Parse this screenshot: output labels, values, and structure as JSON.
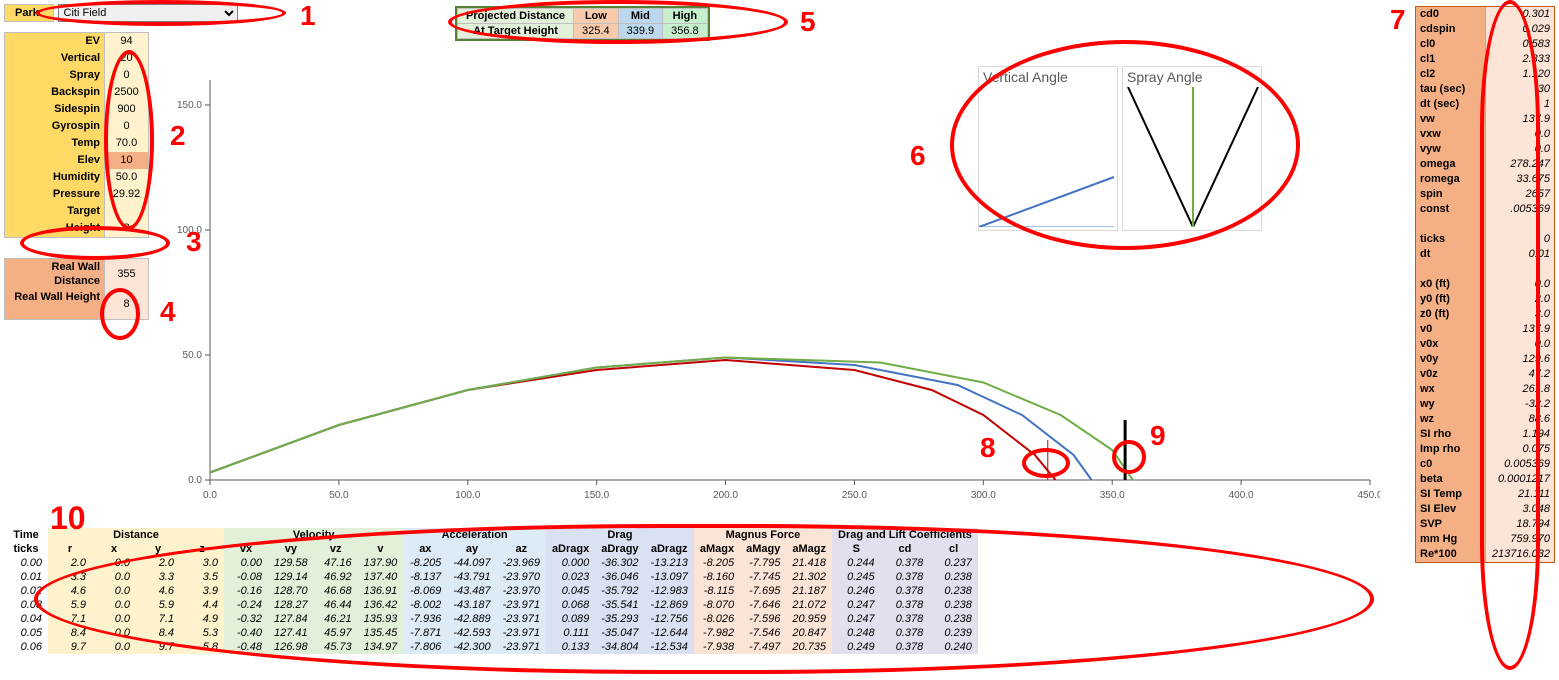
{
  "park": {
    "label": "Park:",
    "selected": "Citi Field"
  },
  "inputs": {
    "rows": [
      {
        "label": "EV",
        "value": "94"
      },
      {
        "label": "Vertical",
        "value": "20"
      },
      {
        "label": "Spray",
        "value": "0"
      },
      {
        "label": "Backspin",
        "value": "2500"
      },
      {
        "label": "Sidespin",
        "value": "900"
      },
      {
        "label": "Gyrospin",
        "value": "0"
      },
      {
        "label": "Temp",
        "value": "70.0"
      },
      {
        "label": "Elev",
        "value": "10",
        "highlight": true
      },
      {
        "label": "Humidity",
        "value": "50.0"
      },
      {
        "label": "Pressure",
        "value": "29.92"
      },
      {
        "label": "Target",
        "value": ""
      },
      {
        "label": "Height",
        "value": "8"
      }
    ]
  },
  "wall": {
    "rows": [
      {
        "label": "Real Wall Distance",
        "value": "355"
      },
      {
        "label": "Real Wall Height",
        "value": "8"
      }
    ]
  },
  "projected": {
    "row1_label": "Projected Distance",
    "row2_label": "At Target Height",
    "cols": {
      "low": "Low",
      "mid": "Mid",
      "high": "High"
    },
    "vals": {
      "low": "325.4",
      "mid": "339.9",
      "high": "356.8"
    }
  },
  "angles": {
    "vertical_title": "Vertical Angle",
    "spray_title": "Spray Angle"
  },
  "traj_chart": {
    "type": "line",
    "xlim": [
      0,
      450
    ],
    "ylim": [
      0,
      160
    ],
    "xtick_step": 50,
    "ytick_step": 50,
    "xtick_labels": [
      "0.0",
      "50.0",
      "100.0",
      "150.0",
      "200.0",
      "250.0",
      "300.0",
      "350.0",
      "400.0",
      "450.0"
    ],
    "ytick_labels": [
      "0.0",
      "50.0",
      "100.0",
      "150.0"
    ],
    "axis_color": "#595959",
    "label_fontsize": 10,
    "series": [
      {
        "name": "low",
        "color": "#c00000",
        "points": [
          [
            0,
            3
          ],
          [
            50,
            22
          ],
          [
            100,
            36
          ],
          [
            150,
            44
          ],
          [
            200,
            48
          ],
          [
            250,
            44
          ],
          [
            280,
            36
          ],
          [
            300,
            26
          ],
          [
            320,
            10
          ],
          [
            328,
            0
          ]
        ]
      },
      {
        "name": "mid",
        "color": "#4472c4",
        "points": [
          [
            0,
            3
          ],
          [
            50,
            22
          ],
          [
            100,
            36
          ],
          [
            150,
            45
          ],
          [
            200,
            49
          ],
          [
            250,
            46
          ],
          [
            290,
            38
          ],
          [
            315,
            26
          ],
          [
            335,
            10
          ],
          [
            342,
            0
          ]
        ]
      },
      {
        "name": "high",
        "color": "#70ad47",
        "points": [
          [
            0,
            3
          ],
          [
            50,
            22
          ],
          [
            100,
            36
          ],
          [
            150,
            45
          ],
          [
            200,
            49
          ],
          [
            260,
            47
          ],
          [
            300,
            39
          ],
          [
            330,
            26
          ],
          [
            350,
            12
          ],
          [
            358,
            0
          ]
        ]
      }
    ],
    "wall": {
      "x": 355,
      "h": 8,
      "color": "#000000"
    },
    "target_marker": {
      "x": 325,
      "h": 8,
      "color": "#c00000"
    }
  },
  "vertical_angle_chart": {
    "type": "line",
    "lines": [
      {
        "color": "#9dc3e6",
        "points": [
          [
            0,
            0
          ],
          [
            135,
            0
          ]
        ]
      },
      {
        "color": "#4472c4",
        "points": [
          [
            0,
            0
          ],
          [
            135,
            50
          ]
        ]
      }
    ]
  },
  "spray_angle_chart": {
    "type": "line",
    "lines": [
      {
        "color": "#000000",
        "points": [
          [
            70,
            0
          ],
          [
            5,
            140
          ]
        ]
      },
      {
        "color": "#000000",
        "points": [
          [
            70,
            0
          ],
          [
            135,
            140
          ]
        ]
      },
      {
        "color": "#70ad47",
        "points": [
          [
            70,
            0
          ],
          [
            70,
            140
          ]
        ]
      }
    ]
  },
  "consts": [
    {
      "label": "cd0",
      "value": "0.301"
    },
    {
      "label": "cdspin",
      "value": "0.029"
    },
    {
      "label": "cl0",
      "value": "0.583"
    },
    {
      "label": "cl1",
      "value": "2.333"
    },
    {
      "label": "cl2",
      "value": "1.120"
    },
    {
      "label": "tau (sec)",
      "value": "30"
    },
    {
      "label": "dt (sec)",
      "value": "1"
    },
    {
      "label": "vw",
      "value": "137.9"
    },
    {
      "label": "vxw",
      "value": "0.0"
    },
    {
      "label": "vyw",
      "value": "0.0"
    },
    {
      "label": "omega",
      "value": "278.247"
    },
    {
      "label": "romega",
      "value": "33.675"
    },
    {
      "label": "spin",
      "value": "2657"
    },
    {
      "label": "const",
      "value": ".005369"
    },
    {
      "spacer": true
    },
    {
      "label": "ticks",
      "value": "0"
    },
    {
      "label": "dt",
      "value": "0.01"
    },
    {
      "spacer": true
    },
    {
      "label": "x0 (ft)",
      "value": "0.0"
    },
    {
      "label": "y0 (ft)",
      "value": "2.0"
    },
    {
      "label": "z0 (ft)",
      "value": "3.0"
    },
    {
      "label": "v0",
      "value": "137.9"
    },
    {
      "label": "v0x",
      "value": "0.0"
    },
    {
      "label": "v0y",
      "value": "129.6"
    },
    {
      "label": "v0z",
      "value": "47.2"
    },
    {
      "label": "wx",
      "value": "261.8"
    },
    {
      "label": "wy",
      "value": "-32.2"
    },
    {
      "label": "wz",
      "value": "88.6"
    },
    {
      "label": "SI rho",
      "value": "1.194"
    },
    {
      "label": "Imp rho",
      "value": "0.075"
    },
    {
      "label": "c0",
      "value": "0.005369"
    },
    {
      "label": "beta",
      "value": "0.0001217"
    },
    {
      "label": "SI Temp",
      "value": "21.111"
    },
    {
      "label": "SI Elev",
      "value": "3.048"
    },
    {
      "label": "SVP",
      "value": "18.794"
    },
    {
      "label": "mm Hg",
      "value": "759.970"
    },
    {
      "label": "Re*100",
      "value": "213716.032"
    }
  ],
  "data_table": {
    "groups": [
      {
        "title": "Time",
        "cols": [
          "ticks"
        ],
        "bg": "bg-time"
      },
      {
        "title": "Distance",
        "cols": [
          "r",
          "x",
          "y",
          "z"
        ],
        "bg": "bg-dist"
      },
      {
        "title": "Velocity",
        "cols": [
          "vx",
          "vy",
          "vz",
          "v"
        ],
        "bg": "bg-vel"
      },
      {
        "title": "Acceleration",
        "cols": [
          "ax",
          "ay",
          "az"
        ],
        "bg": "bg-acc"
      },
      {
        "title": "Drag",
        "cols": [
          "aDragx",
          "aDragy",
          "aDragz"
        ],
        "bg": "bg-drag"
      },
      {
        "title": "Magnus Force",
        "cols": [
          "aMagx",
          "aMagy",
          "aMagz"
        ],
        "bg": "bg-mag"
      },
      {
        "title": "Drag and Lift Coefficients",
        "cols": [
          "S",
          "cd",
          "cl"
        ],
        "bg": "bg-coef"
      }
    ],
    "rows": [
      [
        "0.00",
        "2.0",
        "0.0",
        "2.0",
        "3.0",
        "0.00",
        "129.58",
        "47.16",
        "137.90",
        "-8.205",
        "-44.097",
        "-23.969",
        "0.000",
        "-36.302",
        "-13.213",
        "-8.205",
        "-7.795",
        "21.418",
        "0.244",
        "0.378",
        "0.237"
      ],
      [
        "0.01",
        "3.3",
        "0.0",
        "3.3",
        "3.5",
        "-0.08",
        "129.14",
        "46.92",
        "137.40",
        "-8.137",
        "-43.791",
        "-23.970",
        "0.023",
        "-36.046",
        "-13.097",
        "-8.160",
        "-7.745",
        "21.302",
        "0.245",
        "0.378",
        "0.238"
      ],
      [
        "0.02",
        "4.6",
        "0.0",
        "4.6",
        "3.9",
        "-0.16",
        "128.70",
        "46.68",
        "136.91",
        "-8.069",
        "-43.487",
        "-23.970",
        "0.045",
        "-35.792",
        "-12.983",
        "-8.115",
        "-7.695",
        "21.187",
        "0.246",
        "0.378",
        "0.238"
      ],
      [
        "0.03",
        "5.9",
        "0.0",
        "5.9",
        "4.4",
        "-0.24",
        "128.27",
        "46.44",
        "136.42",
        "-8.002",
        "-43.187",
        "-23.971",
        "0.068",
        "-35.541",
        "-12.869",
        "-8.070",
        "-7.646",
        "21.072",
        "0.247",
        "0.378",
        "0.238"
      ],
      [
        "0.04",
        "7.1",
        "0.0",
        "7.1",
        "4.9",
        "-0.32",
        "127.84",
        "46.21",
        "135.93",
        "-7.936",
        "-42.889",
        "-23.971",
        "0.089",
        "-35.293",
        "-12.756",
        "-8.026",
        "-7.596",
        "20.959",
        "0.247",
        "0.378",
        "0.238"
      ],
      [
        "0.05",
        "8.4",
        "0.0",
        "8.4",
        "5.3",
        "-0.40",
        "127.41",
        "45.97",
        "135.45",
        "-7.871",
        "-42.593",
        "-23.971",
        "0.111",
        "-35.047",
        "-12.644",
        "-7.982",
        "-7.546",
        "20.847",
        "0.248",
        "0.378",
        "0.239"
      ],
      [
        "0.06",
        "9.7",
        "0.0",
        "9.7",
        "5.8",
        "-0.48",
        "126.98",
        "45.73",
        "134.97",
        "-7.806",
        "-42.300",
        "-23.971",
        "0.133",
        "-34.804",
        "-12.534",
        "-7.938",
        "-7.497",
        "20.735",
        "0.249",
        "0.378",
        "0.240"
      ]
    ]
  },
  "annotations": {
    "n1": "1",
    "n2": "2",
    "n3": "3",
    "n4": "4",
    "n5": "5",
    "n6": "6",
    "n7": "7",
    "n8": "8",
    "n9": "9",
    "n10": "10"
  }
}
